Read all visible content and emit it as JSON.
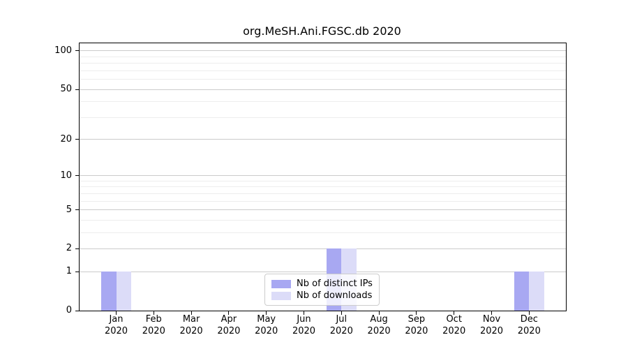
{
  "chart_data": {
    "type": "bar",
    "title": "org.MeSH.Ani.FGSC.db 2020",
    "categories": [
      "Jan",
      "Feb",
      "Mar",
      "Apr",
      "May",
      "Jun",
      "Jul",
      "Aug",
      "Sep",
      "Oct",
      "Nov",
      "Dec"
    ],
    "category_year": "2020",
    "series": [
      {
        "name": "Nb of distinct IPs",
        "color": "#a8a8f2",
        "values": [
          1,
          0,
          0,
          0,
          0,
          0,
          2,
          0,
          0,
          0,
          0,
          1
        ]
      },
      {
        "name": "Nb of downloads",
        "color": "#dcdcf8",
        "values": [
          1,
          0,
          0,
          0,
          0,
          0,
          2,
          0,
          0,
          0,
          0,
          1
        ]
      }
    ],
    "yaxis": {
      "scale": "log1p",
      "ticks": [
        0,
        1,
        2,
        5,
        10,
        20,
        50,
        100
      ],
      "minor_ticks": [
        3,
        4,
        6,
        7,
        8,
        9,
        30,
        40,
        60,
        70,
        80,
        90
      ],
      "ylim": [
        0,
        113
      ]
    },
    "xlabel": "",
    "ylabel": "",
    "grid": {
      "major_color": "#cbcbcb",
      "minor_color": "#ededed"
    },
    "legend": {
      "position": "lower center"
    },
    "axis_color": "#000000"
  }
}
